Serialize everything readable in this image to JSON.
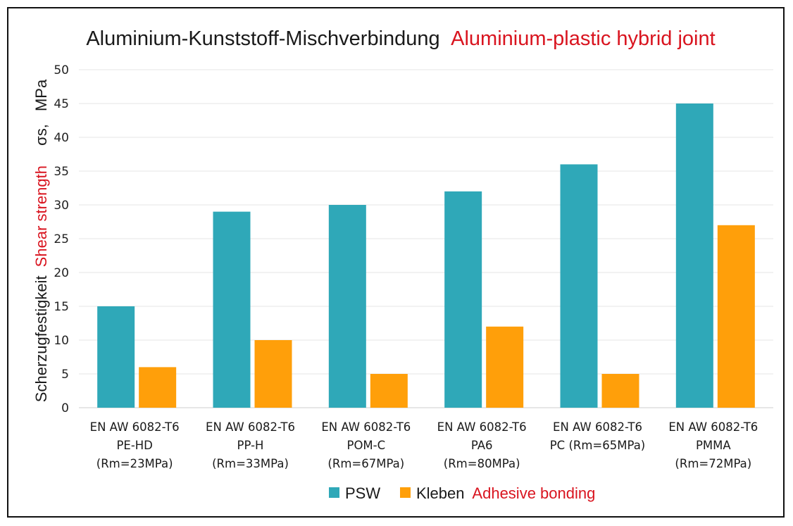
{
  "chart_data": {
    "type": "bar",
    "title": {
      "primary": "Aluminium-Kunststoff-Mischverbindung",
      "secondary": "Aluminium-plastic hybrid joint"
    },
    "ylabel": {
      "primary": "Scherzugfestigkeit",
      "secondary": "Shear strength",
      "symbol": "σs,",
      "unit": "MPa"
    },
    "xlabel": "",
    "ylim": [
      0,
      50
    ],
    "ytick_step": 5,
    "yticks": [
      "0",
      "5",
      "10",
      "15",
      "20",
      "25",
      "30",
      "35",
      "40",
      "45",
      "50"
    ],
    "grid": true,
    "legend_position": "bottom",
    "categories": [
      [
        "EN AW 6082-T6",
        "PE-HD",
        "(Rm=23MPa)"
      ],
      [
        "EN AW 6082-T6",
        "PP-H",
        "(Rm=33MPa)"
      ],
      [
        "EN AW 6082-T6",
        "POM-C",
        "(Rm=67MPa)"
      ],
      [
        "EN AW 6082-T6",
        "PA6",
        "(Rm=80MPa)"
      ],
      [
        "EN AW 6082-T6",
        "PC (Rm=65MPa)"
      ],
      [
        "EN AW 6082-T6",
        "PMMA",
        "(Rm=72MPa)"
      ]
    ],
    "series": [
      {
        "name": "PSW",
        "color": "#2fa8b8",
        "values": [
          15,
          29,
          30,
          32,
          36,
          45
        ]
      },
      {
        "name": "Kleben",
        "name_en": "Adhesive bonding",
        "color": "#ff9f0a",
        "values": [
          6,
          10,
          5,
          12,
          5,
          27
        ]
      }
    ],
    "colors": {
      "text_dark": "#1a1a1a",
      "text_red": "#d9141f",
      "grid": "#e6e6e6"
    }
  }
}
